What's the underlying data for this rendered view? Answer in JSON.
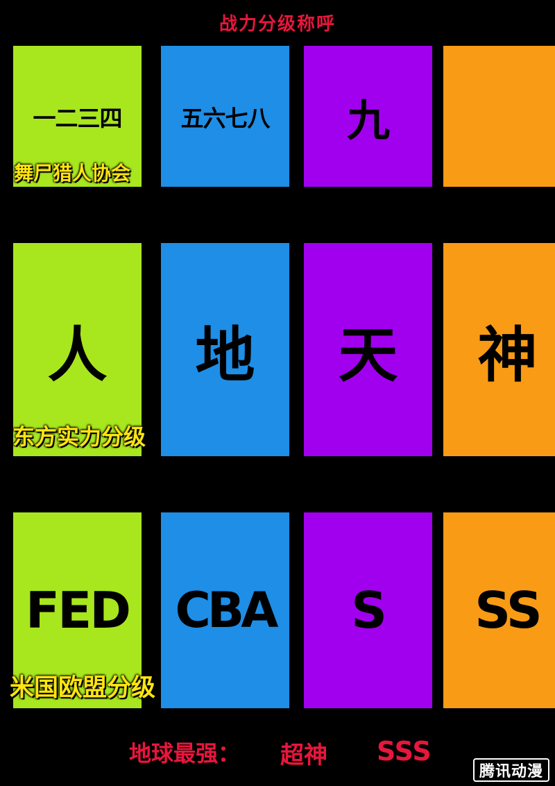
{
  "title": "战力分级称呼",
  "rows": [
    {
      "label": "舞尸猎人协会",
      "cells": [
        "一二三四",
        "五六七八",
        "九",
        ""
      ]
    },
    {
      "label": "东方实力分级",
      "cells": [
        "人",
        "地",
        "天",
        "神"
      ]
    },
    {
      "label": "米国欧盟分级",
      "cells": [
        "FED",
        "CBA",
        "S",
        "SS"
      ]
    }
  ],
  "bottom": {
    "label": "地球最强：",
    "value1": "超神",
    "value2": "SSS"
  },
  "watermark": "腾讯动漫",
  "colors": {
    "green": "#a8e61e",
    "blue": "#1e8ee6",
    "purple": "#a100ee",
    "orange": "#f99b14",
    "red": "#e8163c",
    "yellow": "#ffe510"
  }
}
